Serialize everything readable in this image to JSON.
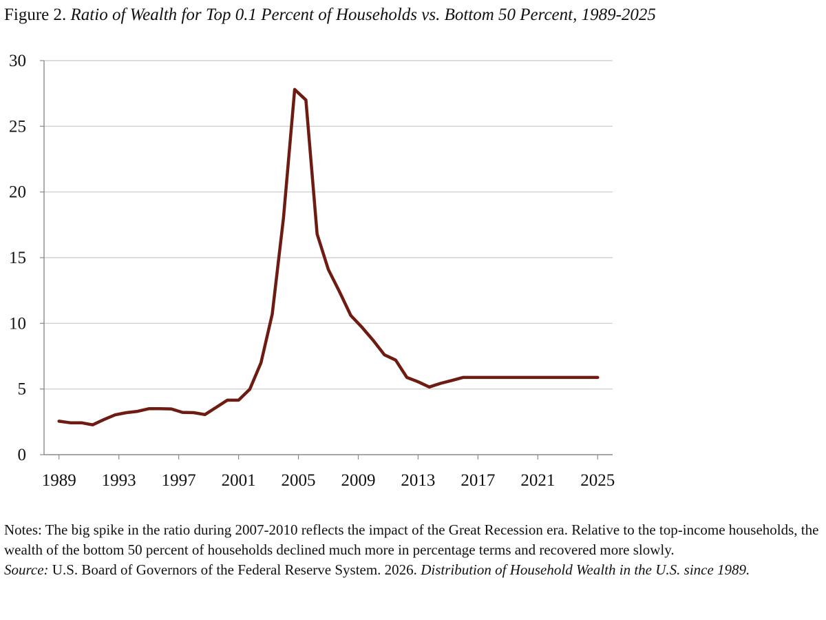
{
  "title": {
    "prefix": "Figure 2.",
    "text": "Ratio of Wealth for Top 0.1 Percent of Households vs. Bottom 50 Percent, 1989-2025"
  },
  "chart_data": {
    "type": "line",
    "title": "Ratio of Wealth for Top 0.1 Percent of Households vs. Bottom 50 Percent, 1989-2025",
    "xlabel": "",
    "ylabel": "",
    "xlim": [
      1988,
      2026
    ],
    "ylim": [
      0,
      30
    ],
    "x_ticks": [
      1989,
      1993,
      1997,
      2001,
      2005,
      2009,
      2013,
      2017,
      2021,
      2025
    ],
    "y_ticks": [
      0,
      5,
      10,
      15,
      20,
      25,
      30
    ],
    "grid": "horizontal",
    "legend": "none",
    "series": [
      {
        "color": "#6e1b12",
        "x": [
          1989.0,
          1989.75,
          1990.5,
          1991.25,
          1992.0,
          1992.75,
          1993.5,
          1994.25,
          1995.0,
          1995.75,
          1996.5,
          1997.25,
          1998.0,
          1998.75,
          1999.5,
          2000.25,
          2001.0,
          2001.75,
          2002.5,
          2003.25,
          2004.0,
          2004.75,
          2005.5,
          2006.25,
          2007.0,
          2007.75,
          2008.5,
          2009.25,
          2010.0,
          2010.75,
          2011.5,
          2012.25,
          2013.0,
          2013.75,
          2014.5,
          2015.25,
          2016.0,
          2016.75,
          2017.5,
          2018.25,
          2019.0,
          2019.75,
          2020.5,
          2021.25,
          2022.0,
          2022.75,
          2023.5,
          2024.25,
          2025.0
        ],
        "values": [
          2.55,
          2.43,
          2.43,
          2.27,
          2.67,
          3.03,
          3.2,
          3.3,
          3.5,
          3.5,
          3.48,
          3.22,
          3.2,
          3.05,
          3.6,
          4.15,
          4.15,
          4.98,
          7.0,
          10.7,
          18.0,
          27.8,
          27.0,
          16.8,
          14.1,
          12.4,
          10.6,
          9.7,
          8.7,
          7.6,
          7.2,
          5.88,
          5.55,
          5.15,
          5.43,
          5.65,
          5.88,
          5.88,
          5.88,
          5.88,
          5.88,
          5.88,
          5.88,
          5.88,
          5.88,
          5.88,
          5.88,
          5.88,
          5.88
        ]
      }
    ]
  },
  "notes": {
    "text": "Notes: The big spike in the ratio during 2007-2010 reflects the impact of the Great Recession era. Relative to the top-income households, the wealth of the bottom 50 percent of households declined much more in percentage terms and recovered more slowly.",
    "source_label": "Source:",
    "source_plain": " U.S. Board of Governors of the Federal Reserve System. 2026. ",
    "source_italic": "Distribution of Household Wealth in the U.S. since 1989."
  }
}
